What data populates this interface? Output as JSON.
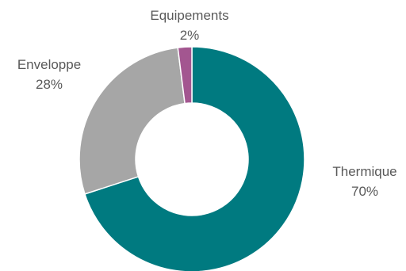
{
  "chart_data": {
    "type": "pie",
    "variant": "donut",
    "slices": [
      {
        "label": "Thermique",
        "value": 70,
        "value_label": "70%",
        "color": "#007A80"
      },
      {
        "label": "Enveloppe",
        "value": 28,
        "value_label": "28%",
        "color": "#A6A6A6"
      },
      {
        "label": "Equipements",
        "value": 2,
        "value_label": "2%",
        "color": "#A35690"
      }
    ],
    "start_angle": "top",
    "direction": "clockwise",
    "legend": "none",
    "labels_outside": true
  }
}
